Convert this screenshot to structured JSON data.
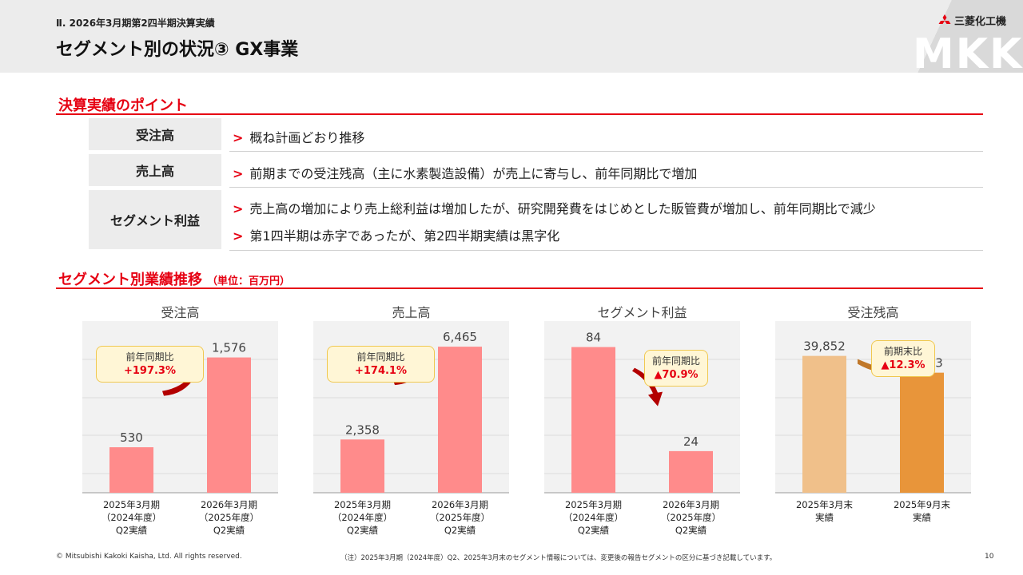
{
  "header": {
    "section": "Ⅱ. 2026年3月期第2四半期決算実績",
    "title": "セグメント別の状況③ GX事業",
    "company": "三菱化工機",
    "watermark": "MKK"
  },
  "points": {
    "title": "決算実績のポイント",
    "rows": [
      {
        "label": "受注高",
        "lines": [
          "概ね計画どおり推移"
        ]
      },
      {
        "label": "売上高",
        "lines": [
          "前期までの受注残高（主に水素製造設備）が売上に寄与し、前年同期比で増加"
        ]
      },
      {
        "label": "セグメント利益",
        "lines": [
          "売上高の増加により売上総利益は増加したが、研究開発費をはじめとした販管費が増加し、前年同期比で減少",
          "第1四半期は赤字であったが、第2四半期実績は黒字化"
        ]
      }
    ],
    "marker": ">"
  },
  "perf": {
    "title": "セグメント別業績推移",
    "unit": "（単位：百万円）"
  },
  "chart_data": [
    {
      "type": "bar",
      "title": "受注高",
      "categories": [
        "2025年3月期\n（2024年度）\nQ2実績",
        "2026年3月期\n（2025年度）\nQ2実績"
      ],
      "values": [
        530,
        1576
      ],
      "value_labels": [
        "530",
        "1,576"
      ],
      "ylim": [
        0,
        2000
      ],
      "colors": [
        "#ff8b8b",
        "#ff8b8b"
      ],
      "callout": {
        "label": "前年同期比",
        "value": "+197.3%"
      },
      "arrow": "up",
      "arrow_color": "#b30000",
      "grid": true
    },
    {
      "type": "bar",
      "title": "売上高",
      "categories": [
        "2025年3月期\n（2024年度）\nQ2実績",
        "2026年3月期\n（2025年度）\nQ2実績"
      ],
      "values": [
        2358,
        6465
      ],
      "value_labels": [
        "2,358",
        "6,465"
      ],
      "ylim": [
        0,
        7600
      ],
      "colors": [
        "#ff8b8b",
        "#ff8b8b"
      ],
      "callout": {
        "label": "前年同期比",
        "value": "+174.1%"
      },
      "arrow": "up",
      "arrow_color": "#b30000",
      "grid": true
    },
    {
      "type": "bar",
      "title": "セグメント利益",
      "categories": [
        "2025年3月期\n（2024年度）\nQ2実績",
        "2026年3月期\n（2025年度）\nQ2実績"
      ],
      "values": [
        84,
        24
      ],
      "value_labels": [
        "84",
        "24"
      ],
      "ylim": [
        0,
        99
      ],
      "colors": [
        "#ff8b8b",
        "#ff8b8b"
      ],
      "callout": {
        "label": "前年同期比",
        "value": "▲70.9%"
      },
      "arrow": "down",
      "arrow_color": "#b30000",
      "grid": true
    },
    {
      "type": "bar",
      "title": "受注残高",
      "categories": [
        "2025年3月末\n実績",
        "2025年9月末\n実績"
      ],
      "values": [
        39852,
        34963
      ],
      "value_labels": [
        "39,852",
        "34,963"
      ],
      "ylim": [
        0,
        50000
      ],
      "colors": [
        "#f0c08a",
        "#e8953a"
      ],
      "callout": {
        "label": "前期末比",
        "value": "▲12.3%"
      },
      "arrow": "right",
      "arrow_color": "#c0782a",
      "grid": true
    }
  ],
  "footer": {
    "copyright": "© Mitsubishi Kakoki Kaisha, Ltd. All rights reserved.",
    "note": "（注）2025年3月期（2024年度）Q2、2025年3月末のセグメント情報については、変更後の報告セグメントの区分に基づき記載しています。",
    "page": "10"
  }
}
